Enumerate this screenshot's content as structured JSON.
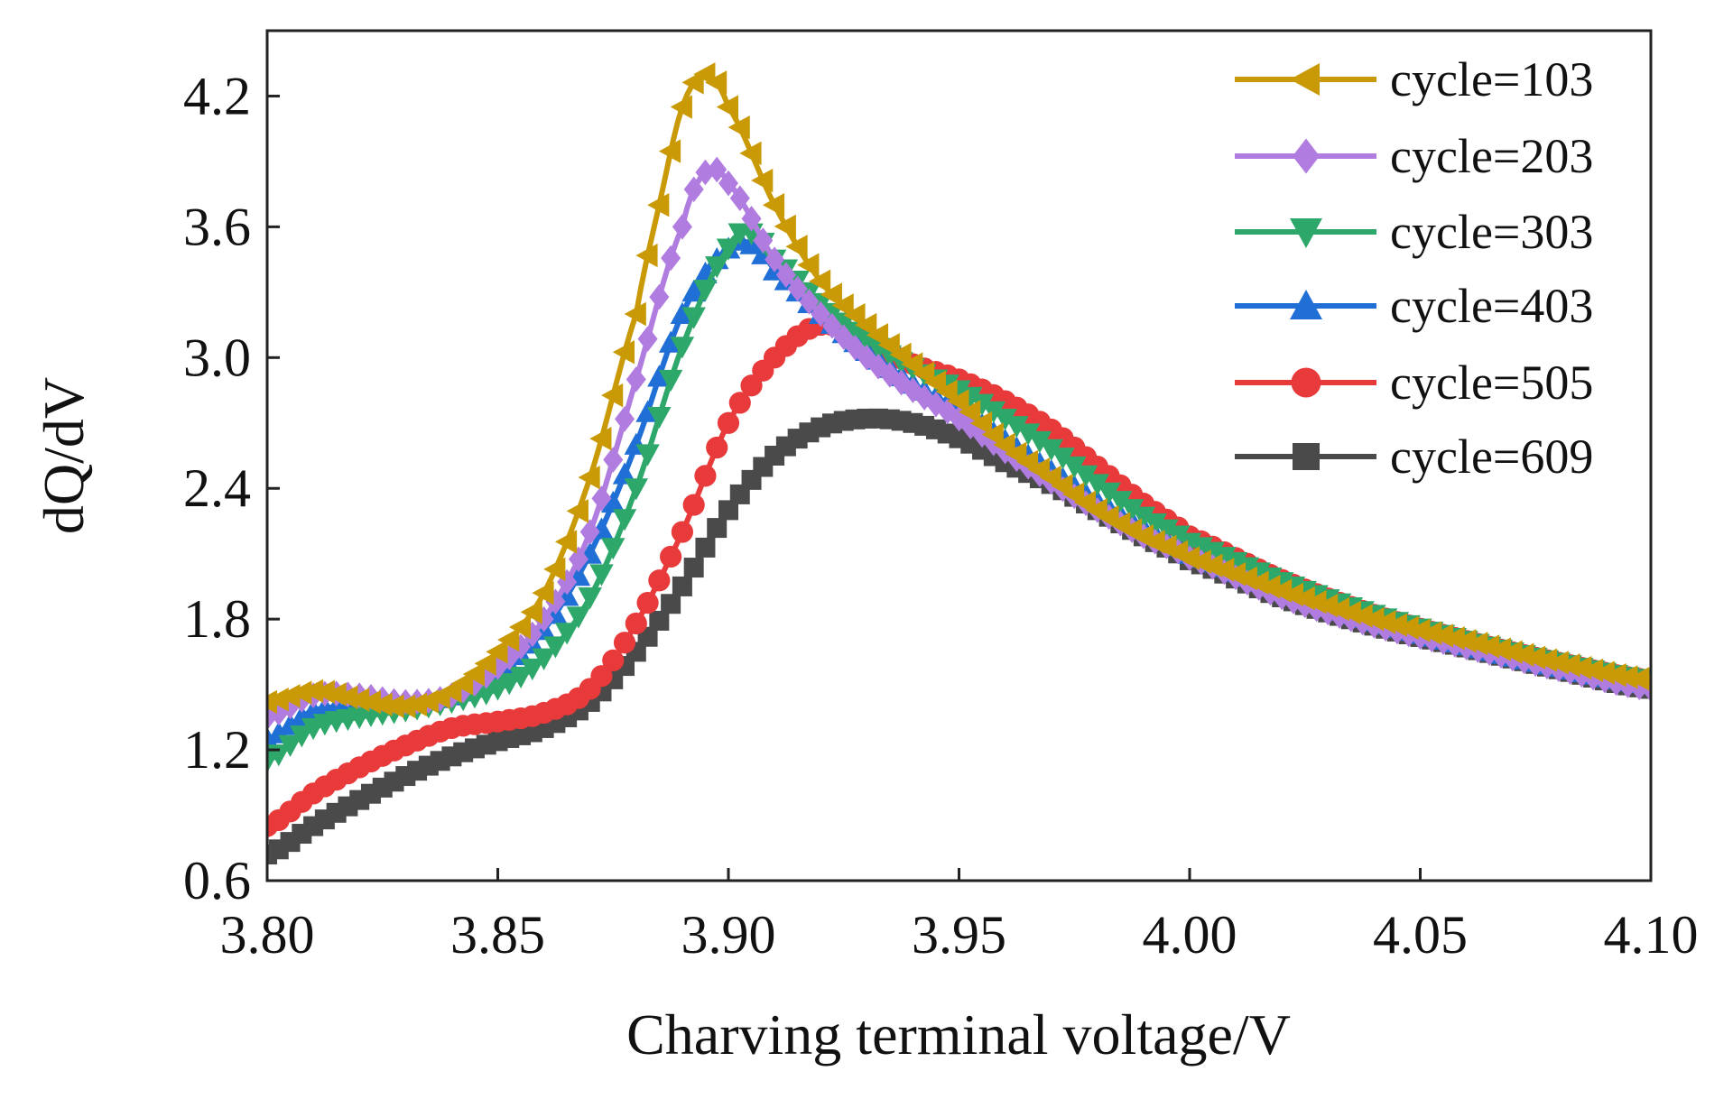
{
  "chart_data": {
    "type": "line",
    "title": "",
    "xlabel": "Charving terminal voltage/V",
    "ylabel": "dQ/dV",
    "xlim": [
      3.8,
      4.1
    ],
    "ylim": [
      0.6,
      4.5
    ],
    "xticks": [
      "3.80",
      "3.85",
      "3.90",
      "3.95",
      "4.00",
      "4.05",
      "4.10"
    ],
    "yticks": [
      "0.6",
      "1.2",
      "1.8",
      "2.4",
      "3.0",
      "3.6",
      "4.2"
    ],
    "grid": false,
    "legend_position": "top-right",
    "series": [
      {
        "name": "cycle=103",
        "color": "#c99a06",
        "marker": "triangle-left",
        "x": [
          3.8,
          3.81,
          3.82,
          3.83,
          3.84,
          3.85,
          3.86,
          3.87,
          3.88,
          3.885,
          3.89,
          3.895,
          3.9,
          3.91,
          3.92,
          3.93,
          3.94,
          3.95,
          3.96,
          3.97,
          3.98,
          3.99,
          4.0,
          4.02,
          4.04,
          4.06,
          4.08,
          4.1
        ],
        "y": [
          1.42,
          1.47,
          1.43,
          1.4,
          1.47,
          1.65,
          1.92,
          2.45,
          3.2,
          3.7,
          4.15,
          4.3,
          4.15,
          3.7,
          3.35,
          3.15,
          2.97,
          2.8,
          2.6,
          2.45,
          2.3,
          2.18,
          2.08,
          1.93,
          1.8,
          1.7,
          1.6,
          1.52
        ]
      },
      {
        "name": "cycle=203",
        "color": "#b07ce0",
        "marker": "diamond",
        "x": [
          3.8,
          3.81,
          3.82,
          3.83,
          3.84,
          3.85,
          3.86,
          3.87,
          3.88,
          3.89,
          3.895,
          3.9,
          3.91,
          3.92,
          3.93,
          3.94,
          3.95,
          3.96,
          3.97,
          3.98,
          3.99,
          4.0,
          4.02,
          4.04,
          4.06,
          4.08,
          4.1
        ],
        "y": [
          1.35,
          1.45,
          1.45,
          1.42,
          1.45,
          1.58,
          1.8,
          2.2,
          2.9,
          3.6,
          3.85,
          3.8,
          3.45,
          3.2,
          3.0,
          2.85,
          2.72,
          2.57,
          2.43,
          2.3,
          2.18,
          2.08,
          1.9,
          1.77,
          1.67,
          1.57,
          1.48
        ]
      },
      {
        "name": "cycle=303",
        "color": "#2ea86a",
        "marker": "triangle-down",
        "x": [
          3.8,
          3.81,
          3.82,
          3.83,
          3.84,
          3.85,
          3.86,
          3.87,
          3.88,
          3.89,
          3.9,
          3.905,
          3.91,
          3.92,
          3.93,
          3.94,
          3.95,
          3.96,
          3.97,
          3.98,
          3.99,
          4.0,
          4.02,
          4.04,
          4.06,
          4.08,
          4.1
        ],
        "y": [
          1.15,
          1.3,
          1.35,
          1.38,
          1.42,
          1.48,
          1.62,
          1.9,
          2.4,
          3.05,
          3.5,
          3.57,
          3.45,
          3.25,
          3.08,
          2.95,
          2.85,
          2.72,
          2.58,
          2.42,
          2.27,
          2.15,
          1.97,
          1.82,
          1.7,
          1.6,
          1.52
        ]
      },
      {
        "name": "cycle=403",
        "color": "#1f6fd6",
        "marker": "triangle-up",
        "x": [
          3.8,
          3.81,
          3.82,
          3.83,
          3.84,
          3.85,
          3.86,
          3.87,
          3.88,
          3.89,
          3.9,
          3.905,
          3.91,
          3.92,
          3.93,
          3.94,
          3.95,
          3.96,
          3.97,
          3.98,
          3.99,
          4.0,
          4.02,
          4.04,
          4.06,
          4.08,
          4.1
        ],
        "y": [
          1.25,
          1.38,
          1.4,
          1.42,
          1.45,
          1.55,
          1.75,
          2.1,
          2.6,
          3.2,
          3.5,
          3.52,
          3.4,
          3.2,
          3.03,
          2.88,
          2.76,
          2.62,
          2.48,
          2.34,
          2.22,
          2.1,
          1.93,
          1.79,
          1.68,
          1.58,
          1.5
        ]
      },
      {
        "name": "cycle=505",
        "color": "#e83a3a",
        "marker": "circle",
        "x": [
          3.8,
          3.81,
          3.82,
          3.83,
          3.84,
          3.85,
          3.86,
          3.87,
          3.88,
          3.89,
          3.9,
          3.91,
          3.92,
          3.93,
          3.94,
          3.95,
          3.96,
          3.97,
          3.98,
          3.99,
          4.0,
          4.02,
          4.04,
          4.06,
          4.08,
          4.1
        ],
        "y": [
          0.85,
          1.0,
          1.12,
          1.22,
          1.3,
          1.33,
          1.37,
          1.48,
          1.78,
          2.2,
          2.7,
          3.0,
          3.15,
          3.08,
          2.97,
          2.9,
          2.8,
          2.67,
          2.5,
          2.33,
          2.18,
          1.98,
          1.82,
          1.7,
          1.6,
          1.52
        ]
      },
      {
        "name": "cycle=609",
        "color": "#4a4a4a",
        "marker": "square",
        "x": [
          3.8,
          3.81,
          3.82,
          3.83,
          3.84,
          3.85,
          3.86,
          3.87,
          3.88,
          3.89,
          3.9,
          3.91,
          3.92,
          3.93,
          3.94,
          3.95,
          3.96,
          3.97,
          3.98,
          3.99,
          4.0,
          4.02,
          4.04,
          4.06,
          4.08,
          4.1
        ],
        "y": [
          0.72,
          0.85,
          0.97,
          1.08,
          1.17,
          1.24,
          1.3,
          1.42,
          1.65,
          1.95,
          2.3,
          2.55,
          2.68,
          2.72,
          2.7,
          2.63,
          2.52,
          2.42,
          2.3,
          2.18,
          2.07,
          1.9,
          1.77,
          1.67,
          1.57,
          1.48
        ]
      }
    ]
  }
}
